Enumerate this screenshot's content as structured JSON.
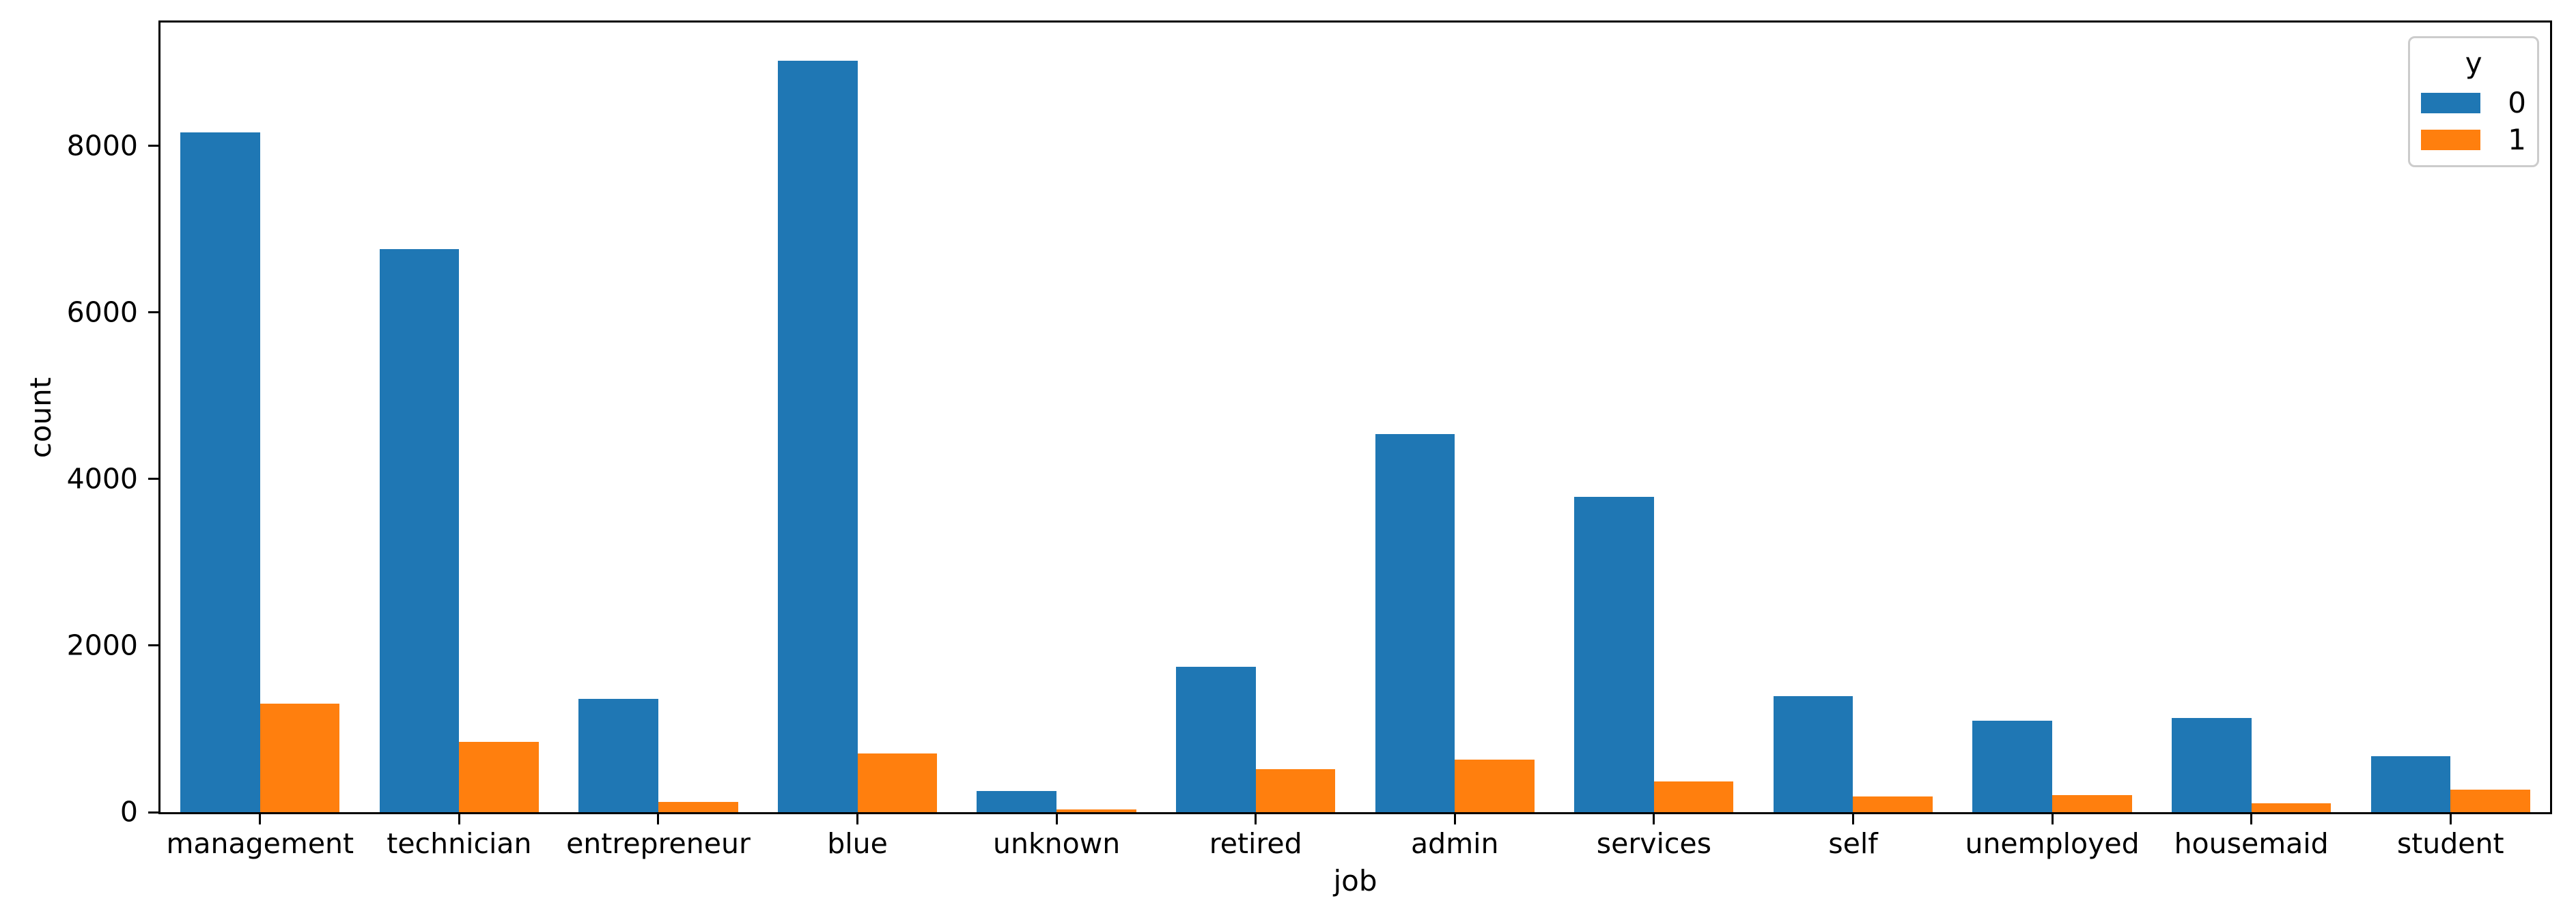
{
  "chart_data": {
    "type": "bar",
    "title": "",
    "xlabel": "job",
    "ylabel": "count",
    "categories": [
      "management",
      "technician",
      "entrepreneur",
      "blue",
      "unknown",
      "retired",
      "admin",
      "services",
      "self",
      "unemployed",
      "housemaid",
      "student"
    ],
    "series": [
      {
        "name": "0",
        "color": "#1f77b4",
        "values": [
          8157,
          6757,
          1364,
          9024,
          254,
          1748,
          4540,
          3785,
          1392,
          1101,
          1131,
          669
        ]
      },
      {
        "name": "1",
        "color": "#ff7f0e",
        "values": [
          1301,
          840,
          123,
          708,
          34,
          516,
          631,
          369,
          187,
          202,
          109,
          269
        ]
      }
    ],
    "legend": {
      "title": "y",
      "entries": [
        "0",
        "1"
      ],
      "position": "upper-right"
    },
    "ylim": [
      0,
      9480
    ],
    "yticks": [
      0,
      2000,
      4000,
      6000,
      8000
    ],
    "grid": false,
    "bar_group_width": 0.8,
    "colors": {
      "spine": "#000000",
      "text": "#000000",
      "legend_border": "#cccccc",
      "background": "#ffffff"
    }
  }
}
